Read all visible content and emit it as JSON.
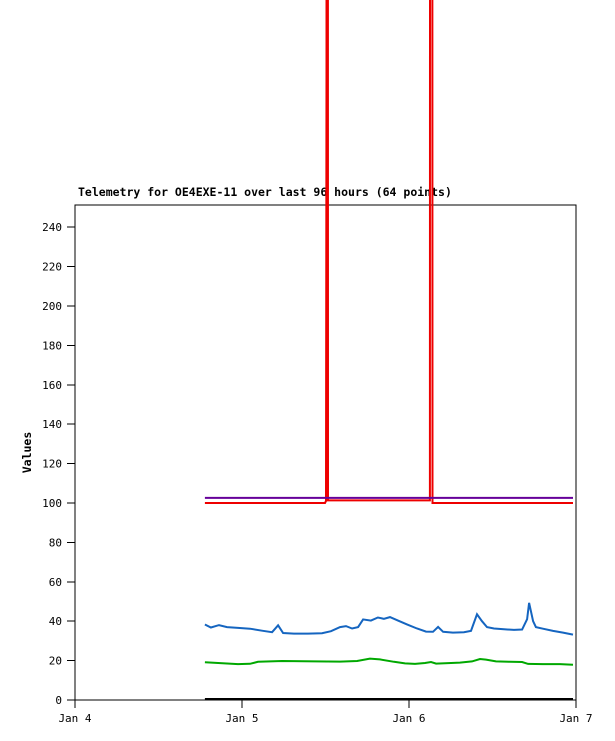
{
  "page": {
    "background_color": "#ffffff"
  },
  "chart_data": {
    "type": "line",
    "title": "Telemetry for OE4EXE-11 over last 96 hours (64 points)",
    "xlabel": "",
    "ylabel": "Values",
    "x_tick_labels": [
      "Jan 4",
      "Jan 5",
      "Jan 6",
      "Jan 7"
    ],
    "x_tick_positions_days": [
      0,
      1,
      2,
      3
    ],
    "y_ticks": [
      0,
      20,
      40,
      60,
      80,
      100,
      120,
      140,
      160,
      180,
      200,
      220,
      240
    ],
    "ylim": [
      0,
      251
    ],
    "xlim_days": [
      0,
      3
    ],
    "x_unit": "days since Jan 4 (0 = Jan 4 tick, 3 = Jan 7 tick)",
    "grid": false,
    "legend": "none",
    "data_span_days": [
      0.778,
      2.982
    ],
    "note": "Red series has two vertical spikes (near Jan 5 12:00 and just after Jan 6) whose peaks exceed the chart top and are drawn clipped, extending above the plot border through the title to the top of the image.",
    "series": [
      {
        "name": "black-baseline",
        "color": "#000000",
        "points": [
          [
            0.778,
            0.5
          ],
          [
            2.982,
            0.5
          ]
        ]
      },
      {
        "name": "green",
        "color": "#00a800",
        "points": [
          [
            0.778,
            19.2
          ],
          [
            0.976,
            18.2
          ],
          [
            1.048,
            18.4
          ],
          [
            1.096,
            19.4
          ],
          [
            1.24,
            19.8
          ],
          [
            1.437,
            19.6
          ],
          [
            1.587,
            19.5
          ],
          [
            1.689,
            19.8
          ],
          [
            1.766,
            21.0
          ],
          [
            1.826,
            20.6
          ],
          [
            1.91,
            19.4
          ],
          [
            1.976,
            18.6
          ],
          [
            2.036,
            18.3
          ],
          [
            2.096,
            18.8
          ],
          [
            2.132,
            19.3
          ],
          [
            2.162,
            18.5
          ],
          [
            2.216,
            18.7
          ],
          [
            2.305,
            19.0
          ],
          [
            2.377,
            19.6
          ],
          [
            2.425,
            20.8
          ],
          [
            2.461,
            20.5
          ],
          [
            2.521,
            19.6
          ],
          [
            2.605,
            19.4
          ],
          [
            2.677,
            19.3
          ],
          [
            2.713,
            18.3
          ],
          [
            2.802,
            18.2
          ],
          [
            2.904,
            18.2
          ],
          [
            2.982,
            17.9
          ]
        ]
      },
      {
        "name": "blue",
        "color": "#1565c0",
        "points": [
          [
            0.778,
            38.3
          ],
          [
            0.814,
            36.8
          ],
          [
            0.862,
            38.0
          ],
          [
            0.91,
            37.0
          ],
          [
            0.976,
            36.6
          ],
          [
            1.048,
            36.2
          ],
          [
            1.12,
            35.2
          ],
          [
            1.18,
            34.4
          ],
          [
            1.216,
            37.9
          ],
          [
            1.246,
            34.0
          ],
          [
            1.311,
            33.7
          ],
          [
            1.395,
            33.7
          ],
          [
            1.479,
            33.9
          ],
          [
            1.533,
            34.9
          ],
          [
            1.587,
            37.0
          ],
          [
            1.623,
            37.5
          ],
          [
            1.659,
            36.3
          ],
          [
            1.695,
            37.0
          ],
          [
            1.725,
            40.9
          ],
          [
            1.772,
            40.3
          ],
          [
            1.814,
            41.9
          ],
          [
            1.85,
            41.2
          ],
          [
            1.886,
            42.1
          ],
          [
            1.934,
            40.3
          ],
          [
            1.988,
            38.4
          ],
          [
            2.048,
            36.3
          ],
          [
            2.102,
            34.7
          ],
          [
            2.144,
            34.6
          ],
          [
            2.174,
            37.1
          ],
          [
            2.204,
            34.6
          ],
          [
            2.263,
            34.2
          ],
          [
            2.329,
            34.4
          ],
          [
            2.371,
            35.1
          ],
          [
            2.407,
            43.5
          ],
          [
            2.437,
            40.0
          ],
          [
            2.467,
            37.0
          ],
          [
            2.509,
            36.3
          ],
          [
            2.569,
            35.9
          ],
          [
            2.629,
            35.6
          ],
          [
            2.677,
            35.8
          ],
          [
            2.707,
            41.0
          ],
          [
            2.719,
            49.3
          ],
          [
            2.743,
            40.0
          ],
          [
            2.76,
            37.0
          ],
          [
            2.802,
            36.2
          ],
          [
            2.862,
            35.1
          ],
          [
            2.922,
            34.2
          ],
          [
            2.982,
            33.2
          ]
        ]
      },
      {
        "name": "red",
        "color": "#ee0000",
        "points": [
          [
            0.778,
            100
          ],
          [
            1.497,
            100
          ],
          [
            1.503,
            101
          ],
          [
            1.506,
            324
          ],
          [
            1.509,
            3000
          ],
          [
            1.515,
            101.3
          ],
          [
            2.125,
            101.3
          ],
          [
            2.132,
            3000
          ],
          [
            2.141,
            100
          ],
          [
            2.982,
            100
          ]
        ]
      },
      {
        "name": "purple",
        "color": "#660099",
        "points": [
          [
            0.778,
            102.6
          ],
          [
            2.982,
            102.6
          ]
        ]
      }
    ]
  }
}
